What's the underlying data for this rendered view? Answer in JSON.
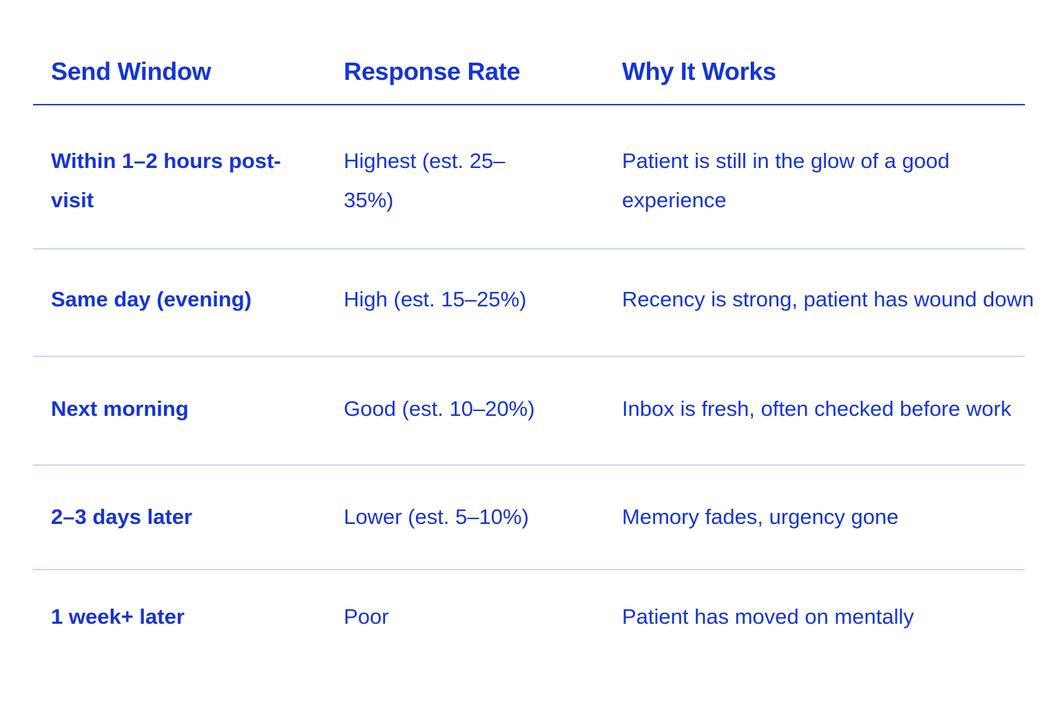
{
  "table": {
    "headers": [
      "Send Window",
      "Response Rate",
      "Why It Works"
    ],
    "rows": [
      {
        "send_window": "Within 1–2 hours post-visit",
        "response_rate": "Highest (est. 25–35%)",
        "why": "Patient is still in the glow of a good experience"
      },
      {
        "send_window": "Same day (evening)",
        "response_rate": "High (est. 15–25%)",
        "why": "Recency is strong, patient has wound down"
      },
      {
        "send_window": "Next morning",
        "response_rate": "Good (est. 10–20%)",
        "why": "Inbox is fresh, often checked before work"
      },
      {
        "send_window": "2–3 days later",
        "response_rate": "Lower (est. 5–10%)",
        "why": "Memory fades, urgency gone"
      },
      {
        "send_window": "1 week+ later",
        "response_rate": "Poor",
        "why": "Patient has moved on mentally"
      }
    ]
  },
  "colors": {
    "text": "#1534d6",
    "header_rule": "#1a3ad8",
    "row_rule": "#9bb5ee",
    "background": "#ffffff"
  }
}
